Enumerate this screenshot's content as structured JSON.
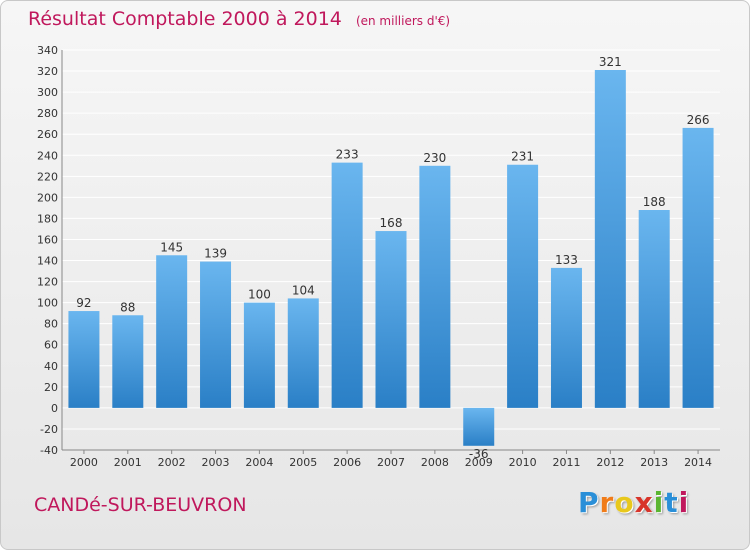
{
  "header": {
    "title": "Résultat Comptable 2000 à 2014",
    "subtitle": "(en milliers d'€)"
  },
  "footer": {
    "town": "CANDé-SUR-BEUVRON",
    "logo_letters": [
      "P",
      "r",
      "o",
      "x",
      "i",
      "t",
      "i"
    ],
    "logo_colors": [
      "#2a8fd8",
      "#f07c1a",
      "#e8c81c",
      "#d8342a",
      "#5ab531",
      "#2a8fd8",
      "#c0185c"
    ]
  },
  "colors": {
    "bar": "#3a8fd6",
    "bar_light": "#6ab6ef",
    "title": "#c0185c",
    "grid": "#ffffff",
    "axis_text": "#333333"
  },
  "chart_data": {
    "type": "bar",
    "title": "Résultat Comptable 2000 à 2014",
    "xlabel": "",
    "ylabel": "(en milliers d'€)",
    "categories": [
      "2000",
      "2001",
      "2002",
      "2003",
      "2004",
      "2005",
      "2006",
      "2007",
      "2008",
      "2009",
      "2010",
      "2011",
      "2012",
      "2013",
      "2014"
    ],
    "values": [
      92,
      88,
      145,
      139,
      100,
      104,
      233,
      168,
      230,
      -36,
      231,
      133,
      321,
      188,
      266
    ],
    "ylim": [
      -40,
      340
    ],
    "yticks": [
      -40,
      -20,
      0,
      20,
      40,
      60,
      80,
      100,
      120,
      140,
      160,
      180,
      200,
      220,
      240,
      260,
      280,
      300,
      320,
      340
    ],
    "grid": true,
    "data_labels": true
  }
}
